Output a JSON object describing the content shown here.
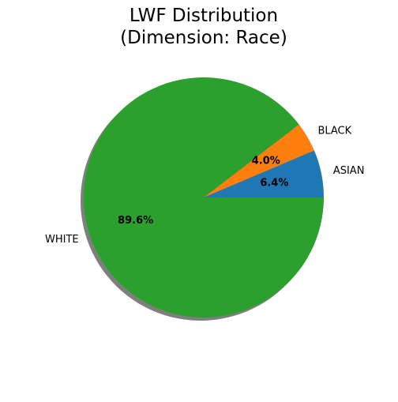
{
  "chart_data": {
    "type": "pie",
    "title_lines": [
      "LWF Distribution",
      "(Dimension: Race)"
    ],
    "slices": [
      {
        "label": "ASIAN",
        "value": 6.4,
        "pct_text": "6.4%",
        "color": "#1f77b4"
      },
      {
        "label": "BLACK",
        "value": 4.0,
        "pct_text": "4.0%",
        "color": "#ff7f0e"
      },
      {
        "label": "WHITE",
        "value": 89.6,
        "pct_text": "89.6%",
        "color": "#2ca02c"
      }
    ],
    "start_angle_deg": 0,
    "direction": "counterclockwise",
    "shadow": true,
    "legend": "none"
  }
}
